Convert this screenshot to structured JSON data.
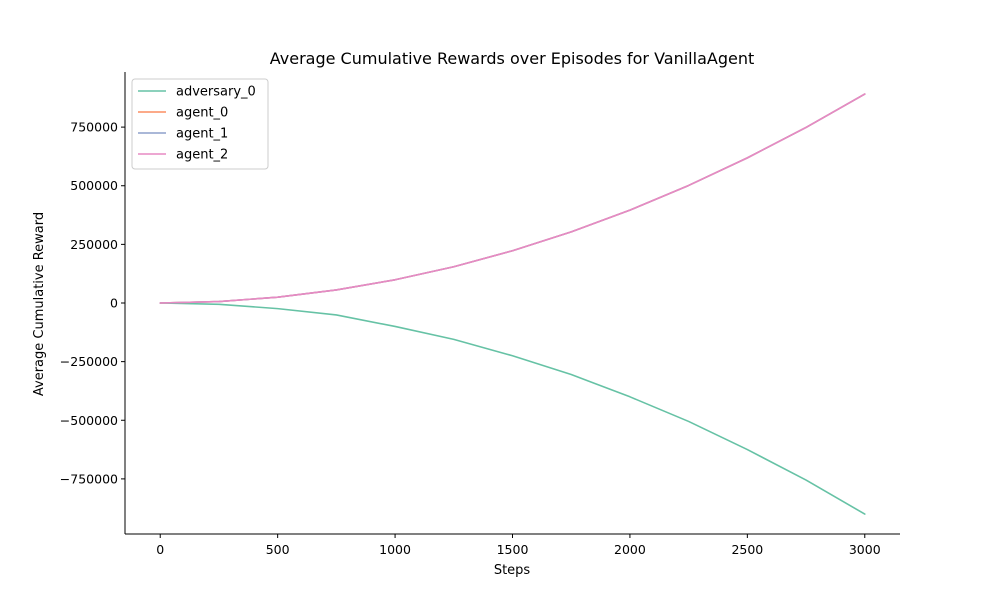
{
  "chart_data": {
    "type": "line",
    "title": "Average Cumulative Rewards over Episodes for VanillaAgent",
    "xlabel": "Steps",
    "ylabel": "Average Cumulative Reward",
    "xlim": [
      -150,
      3150
    ],
    "ylim": [
      -985000,
      985000
    ],
    "xticks": [
      0,
      500,
      1000,
      1500,
      2000,
      2500,
      3000
    ],
    "xtick_labels": [
      "0",
      "500",
      "1000",
      "1500",
      "2000",
      "2500",
      "3000"
    ],
    "yticks": [
      -750000,
      -500000,
      -250000,
      0,
      250000,
      500000,
      750000
    ],
    "ytick_labels": [
      "−750000",
      "−500000",
      "−250000",
      "0",
      "250000",
      "500000",
      "750000"
    ],
    "grid": false,
    "legend_position": "top-left",
    "x": [
      0,
      250,
      500,
      750,
      1000,
      1250,
      1500,
      1750,
      2000,
      2250,
      2500,
      2750,
      3000
    ],
    "series": [
      {
        "name": "adversary_0",
        "color": "#66c2a5",
        "values": [
          0,
          -5400,
          -24000,
          -51000,
          -100000,
          -155000,
          -225000,
          -305000,
          -400000,
          -505000,
          -625000,
          -755000,
          -900000
        ]
      },
      {
        "name": "agent_0",
        "color": "#fc8d62",
        "values": [
          0,
          6200,
          24800,
          55800,
          99000,
          154700,
          222800,
          303200,
          396000,
          501200,
          618800,
          748700,
          891000
        ]
      },
      {
        "name": "agent_1",
        "color": "#8da0cb",
        "values": [
          0,
          6200,
          24800,
          55800,
          99000,
          154700,
          222800,
          303200,
          396000,
          501200,
          618800,
          748700,
          891000
        ]
      },
      {
        "name": "agent_2",
        "color": "#e78ac3",
        "values": [
          0,
          6200,
          24800,
          55800,
          99000,
          154700,
          222800,
          303200,
          396000,
          501200,
          618800,
          748700,
          891000
        ]
      }
    ]
  }
}
